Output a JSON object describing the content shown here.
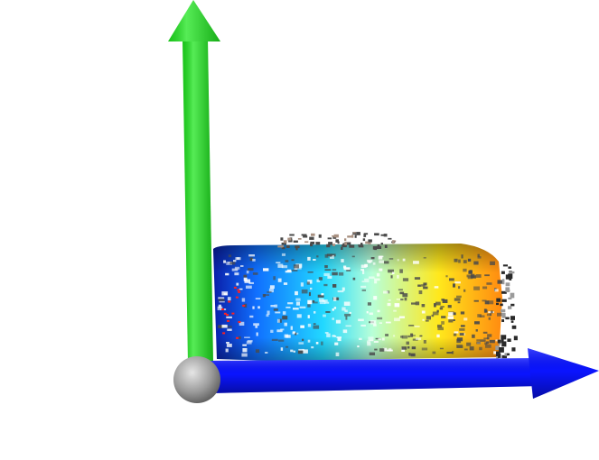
{
  "scene": {
    "background_color": "#ffffff",
    "axes": {
      "vertical_axis_color": "#1ee61e",
      "horizontal_axis_color": "#0a14ff",
      "origin_sphere_color": "#9a9a9a"
    },
    "point_cloud": {
      "colormap": [
        "#0a1ea8",
        "#1070ff",
        "#22d8ff",
        "#b8ffd8",
        "#ffe81c",
        "#ff8a10"
      ],
      "shadow_points_color": "#4a4a4a",
      "highlight_points_color": "#ffffff",
      "accent_points_color": "#ff2020"
    }
  }
}
